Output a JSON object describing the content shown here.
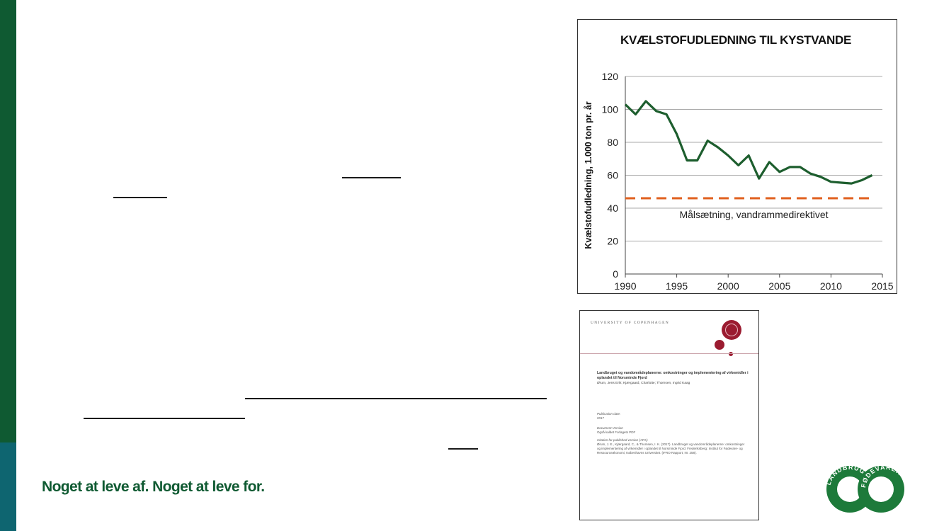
{
  "slogan": "Noget at leve af. Noget at leve for.",
  "colors": {
    "brand_green": "#0f5a32",
    "brand_teal": "#0e6570",
    "line_green": "#1d5e2e",
    "target_orange": "#e0601e"
  },
  "chart_data": {
    "type": "line",
    "title": "KVÆLSTOFUDLEDNING TIL KYSTVANDE",
    "ylabel": "Kvælstofudledning, 1.000 ton pr. år",
    "xlabel": "",
    "xlim": [
      1990,
      2015
    ],
    "ylim": [
      0,
      120
    ],
    "xticks": [
      "1990",
      "1995",
      "2000",
      "2005",
      "2010",
      "2015"
    ],
    "yticks": [
      "0",
      "20",
      "40",
      "60",
      "80",
      "100",
      "120"
    ],
    "grid": "horizontal",
    "series": [
      {
        "x": [
          1990,
          1991,
          1992,
          1993,
          1994,
          1995,
          1996,
          1997,
          1998,
          1999,
          2000,
          2001,
          2002,
          2003,
          2004,
          2005,
          2006,
          2007,
          2008,
          2009,
          2010,
          2011,
          2012,
          2013,
          2014
        ],
        "values": [
          103,
          97,
          105,
          99,
          97,
          85,
          69,
          69,
          81,
          77,
          72,
          66,
          72,
          58,
          68,
          62,
          65,
          65,
          61,
          59,
          56,
          55.5,
          55,
          57,
          60
        ]
      }
    ],
    "target": {
      "label": "Målsætning, vandrammedirektivet",
      "value": 46,
      "x_start": 1990,
      "x_end": 2014
    }
  },
  "document": {
    "university": "UNIVERSITY OF COPENHAGEN",
    "title": "Landbruget og vandområdeplanerne: omkostninger og implementering af virkemidler i oplandet til Norsminde Fjord",
    "authors": "Ørum, Jens Erik; Kjærgaard, Charlotte; Thomsen, Ingrid Kaag",
    "pub_label": "Publication date:",
    "pub_year": "2017",
    "version_label": "Document Version",
    "version_value": "Også kaldet Forlagets PDF",
    "citation_label": "Citation for published version (APA):",
    "citation_text": "Ørum, J. E., Kjærgaard, C., & Thomsen, I. K. (2017). Landbruget og vandområdeplanerne: omkostninger og implementering af virkemidler i oplandet til Norsminde Fjord. Frederiksberg: Institut for Fødevare- og Ressourceøkonomi, Københavns Universitet. (IFRO Rapport; Nr. 258)."
  },
  "logo": {
    "left_word": "LANDBRUG",
    "right_word": "FØDEVARER"
  }
}
